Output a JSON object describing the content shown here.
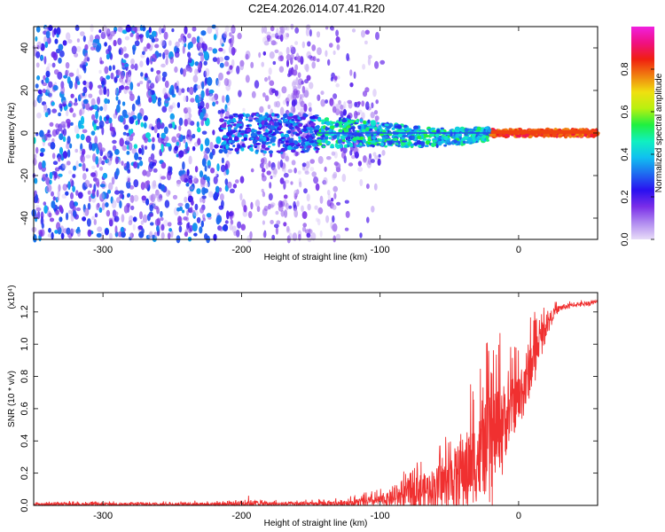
{
  "title": "C2E4.2026.014.07.41.R20",
  "chart_data": [
    {
      "type": "heatmap",
      "name": "spectrogram",
      "xlabel": "Height of straight line (km)",
      "ylabel": "Frequency (Hz)",
      "xlim": [
        -350,
        57
      ],
      "ylim": [
        -50,
        50
      ],
      "x_ticks": [
        -300,
        -200,
        -100,
        0
      ],
      "x_tick_labels": [
        "-300",
        "-200",
        "-100",
        "0"
      ],
      "y_ticks": [
        -40,
        -20,
        0,
        20,
        40
      ],
      "y_tick_labels": [
        "-40",
        "-20",
        "0",
        "20",
        "40"
      ],
      "colorbar": {
        "label": "Normalized spectral amplitude",
        "range": [
          0,
          1
        ],
        "ticks": [
          0,
          0.2,
          0.4,
          0.6,
          0.8
        ],
        "tick_labels": [
          "0.0",
          "0.2",
          "0.4",
          "0.6",
          "0.8"
        ],
        "colors": [
          "#e8dcf8",
          "#b18cf0",
          "#7a2ee8",
          "#2a10f0",
          "#1f6af0",
          "#10c0f0",
          "#10f0c0",
          "#20f040",
          "#b8f010",
          "#f0e010",
          "#f08010",
          "#f02010",
          "#f01080",
          "#f020e0"
        ]
      },
      "features": {
        "noise_region_x": [
          -350,
          -100
        ],
        "carrier_start_x": -145,
        "strong_carrier_start_x": -20,
        "carrier_frequency": 0,
        "sparse_gap_x": [
          [
            -205,
            -185
          ],
          [
            -150,
            -135
          ]
        ]
      }
    },
    {
      "type": "line",
      "name": "snr",
      "xlabel": "Height of straight line (km)",
      "ylabel": "SNR (10 * v/v)",
      "scale_label": "(x10⁴)",
      "xlim": [
        -350,
        57
      ],
      "ylim": [
        0,
        1.32
      ],
      "x_ticks": [
        -300,
        -200,
        -100,
        0
      ],
      "x_tick_labels": [
        "-300",
        "-200",
        "-100",
        "0"
      ],
      "y_ticks": [
        0,
        0.2,
        0.4,
        0.6,
        0.8,
        1.0,
        1.2
      ],
      "y_tick_labels": [
        "0.0",
        "0.2",
        "0.4",
        "0.6",
        "0.8",
        "1.0",
        "1.2"
      ],
      "color": "#f03030",
      "envelope": {
        "x": [
          -350,
          -300,
          -250,
          -210,
          -195,
          -180,
          -150,
          -120,
          -100,
          -90,
          -80,
          -75,
          -70,
          -60,
          -50,
          -40,
          -30,
          -20,
          -15,
          -10,
          -5,
          0,
          5,
          8,
          12,
          15,
          20,
          25,
          30,
          40,
          50,
          57
        ],
        "base": [
          0.005,
          0.005,
          0.005,
          0.005,
          0.01,
          0.005,
          0.005,
          0.01,
          0.02,
          0.03,
          0.05,
          0.08,
          0.06,
          0.08,
          0.1,
          0.15,
          0.2,
          0.3,
          0.4,
          0.45,
          0.55,
          0.6,
          0.7,
          0.8,
          0.9,
          1.0,
          1.1,
          1.18,
          1.22,
          1.24,
          1.25,
          1.26
        ],
        "amp": [
          0.02,
          0.02,
          0.02,
          0.03,
          0.05,
          0.03,
          0.03,
          0.05,
          0.08,
          0.12,
          0.2,
          0.35,
          0.25,
          0.3,
          0.4,
          0.55,
          0.65,
          0.75,
          0.7,
          0.6,
          0.45,
          0.4,
          0.5,
          0.45,
          0.3,
          0.2,
          0.15,
          0.08,
          0.05,
          0.03,
          0.03,
          0.03
        ]
      }
    }
  ]
}
